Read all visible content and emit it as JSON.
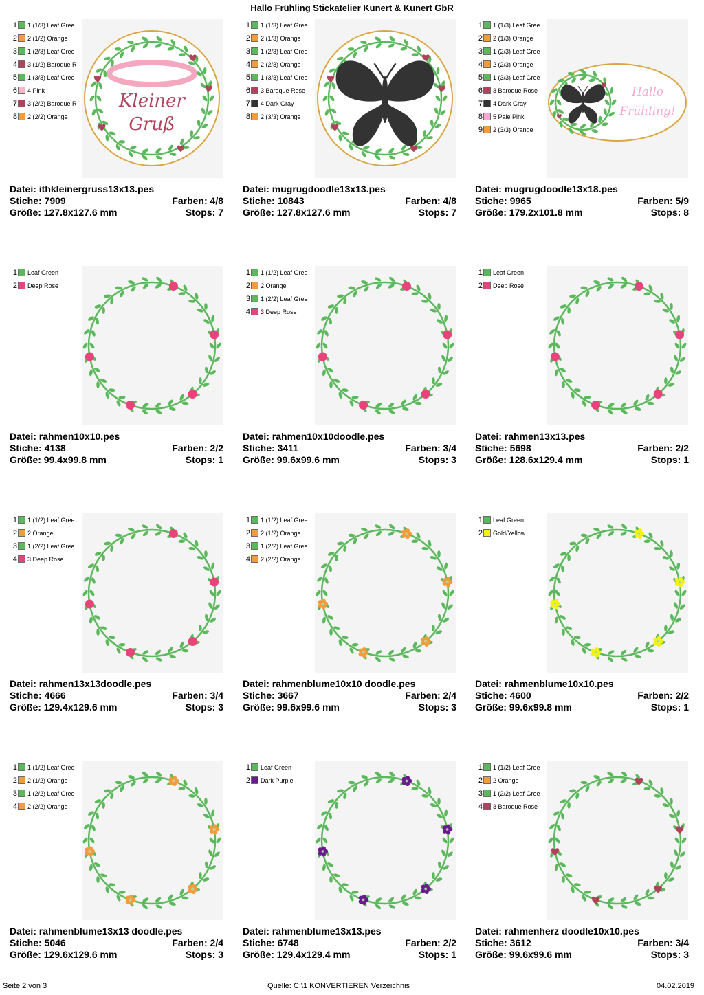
{
  "header": {
    "title": "Hallo Frühling Stickatelier Kunert & Kunert GbR"
  },
  "labels": {
    "file": "Datei:",
    "stitches": "Stiche:",
    "colors": "Farben:",
    "size": "Größe:",
    "stops": "Stops:"
  },
  "colors": {
    "leaf_green": "#5cb85c",
    "orange": "#f39c3c",
    "baroque_rose": "#b0435c",
    "pink": "#f5b7c6",
    "dark_gray": "#333333",
    "pale_pink": "#f7a8d0",
    "deep_rose": "#e8437a",
    "gold_yellow": "#f2f20c",
    "dark_purple": "#6a1b8a"
  },
  "designs": [
    {
      "file": "ithkleinergruss13x13.pes",
      "stitches": "7909",
      "colors": "4/8",
      "size": "127.8x127.6 mm",
      "stops": "7",
      "preview": {
        "type": "ring-text",
        "text1": "Kleiner",
        "text2": "Gruß"
      },
      "legend": [
        {
          "num": "1",
          "label": "1 (1/3) Leaf Gree",
          "color": "leaf_green"
        },
        {
          "num": "2",
          "label": "2 (1/2) Orange",
          "color": "orange"
        },
        {
          "num": "3",
          "label": "1 (2/3) Leaf Gree",
          "color": "leaf_green"
        },
        {
          "num": "4",
          "label": "3 (1/2) Baroque R",
          "color": "baroque_rose"
        },
        {
          "num": "5",
          "label": "1 (3/3) Leaf Gree",
          "color": "leaf_green"
        },
        {
          "num": "6",
          "label": "4 Pink",
          "color": "pink"
        },
        {
          "num": "7",
          "label": "3 (2/2) Baroque R",
          "color": "baroque_rose"
        },
        {
          "num": "8",
          "label": "2 (2/2) Orange",
          "color": "orange"
        }
      ]
    },
    {
      "file": "mugrugdoodle13x13.pes",
      "stitches": "10843",
      "colors": "4/8",
      "size": "127.8x127.6 mm",
      "stops": "7",
      "preview": {
        "type": "ring-butterfly"
      },
      "legend": [
        {
          "num": "1",
          "label": "1 (1/3) Leaf Gree",
          "color": "leaf_green"
        },
        {
          "num": "2",
          "label": "2 (1/3) Orange",
          "color": "orange"
        },
        {
          "num": "3",
          "label": "1 (2/3) Leaf Gree",
          "color": "leaf_green"
        },
        {
          "num": "4",
          "label": "2 (2/3) Orange",
          "color": "orange"
        },
        {
          "num": "5",
          "label": "1 (3/3) Leaf Gree",
          "color": "leaf_green"
        },
        {
          "num": "6",
          "label": "3 Baroque Rose",
          "color": "baroque_rose"
        },
        {
          "num": "7",
          "label": "4 Dark Gray",
          "color": "dark_gray"
        },
        {
          "num": "8",
          "label": "2 (3/3) Orange",
          "color": "orange"
        }
      ]
    },
    {
      "file": "mugrugdoodle13x18.pes",
      "stitches": "9965",
      "colors": "5/9",
      "size": "179.2x101.8 mm",
      "stops": "8",
      "preview": {
        "type": "oval",
        "text1": "Hallo",
        "text2": "Frühling!"
      },
      "legend": [
        {
          "num": "1",
          "label": "1 (1/3) Leaf Gree",
          "color": "leaf_green"
        },
        {
          "num": "2",
          "label": "2 (1/3) Orange",
          "color": "orange"
        },
        {
          "num": "3",
          "label": "1 (2/3) Leaf Gree",
          "color": "leaf_green"
        },
        {
          "num": "4",
          "label": "2 (2/3) Orange",
          "color": "orange"
        },
        {
          "num": "5",
          "label": "1 (3/3) Leaf Gree",
          "color": "leaf_green"
        },
        {
          "num": "6",
          "label": "3 Baroque Rose",
          "color": "baroque_rose"
        },
        {
          "num": "7",
          "label": "4 Dark Gray",
          "color": "dark_gray"
        },
        {
          "num": "8",
          "label": "5 Pale Pink",
          "color": "pale_pink"
        },
        {
          "num": "9",
          "label": "2 (3/3) Orange",
          "color": "orange"
        }
      ]
    },
    {
      "file": "rahmen10x10.pes",
      "stitches": "4138",
      "colors": "2/2",
      "size": "99.4x99.8 mm",
      "stops": "1",
      "preview": {
        "type": "ring",
        "accent": "deep_rose",
        "shape": "pompom"
      },
      "legend": [
        {
          "num": "1",
          "label": "Leaf Green",
          "color": "leaf_green"
        },
        {
          "num": "2",
          "label": "Deep Rose",
          "color": "deep_rose"
        }
      ]
    },
    {
      "file": "rahmen10x10doodle.pes",
      "stitches": "3411",
      "colors": "3/4",
      "size": "99.6x99.6 mm",
      "stops": "3",
      "preview": {
        "type": "ring",
        "accent": "deep_rose",
        "shape": "pompom"
      },
      "legend": [
        {
          "num": "1",
          "label": "1 (1/2) Leaf Gree",
          "color": "leaf_green"
        },
        {
          "num": "2",
          "label": "2 Orange",
          "color": "orange"
        },
        {
          "num": "3",
          "label": "1 (2/2) Leaf Gree",
          "color": "leaf_green"
        },
        {
          "num": "4",
          "label": "3 Deep Rose",
          "color": "deep_rose"
        }
      ]
    },
    {
      "file": "rahmen13x13.pes",
      "stitches": "5698",
      "colors": "2/2",
      "size": "128.6x129.4 mm",
      "stops": "1",
      "preview": {
        "type": "ring",
        "accent": "deep_rose",
        "shape": "pompom"
      },
      "legend": [
        {
          "num": "1",
          "label": "Leaf Green",
          "color": "leaf_green"
        },
        {
          "num": "2",
          "label": "Deep Rose",
          "color": "deep_rose"
        }
      ]
    },
    {
      "file": "rahmen13x13doodle.pes",
      "stitches": "4666",
      "colors": "3/4",
      "size": "129.4x129.6 mm",
      "stops": "3",
      "preview": {
        "type": "ring",
        "accent": "deep_rose",
        "shape": "pompom"
      },
      "legend": [
        {
          "num": "1",
          "label": "1 (1/2) Leaf Gree",
          "color": "leaf_green"
        },
        {
          "num": "2",
          "label": "2 Orange",
          "color": "orange"
        },
        {
          "num": "3",
          "label": "1 (2/2) Leaf Gree",
          "color": "leaf_green"
        },
        {
          "num": "4",
          "label": "3 Deep Rose",
          "color": "deep_rose"
        }
      ]
    },
    {
      "file": "rahmenblume10x10 doodle.pes",
      "stitches": "3667",
      "colors": "2/4",
      "size": "99.6x99.6 mm",
      "stops": "3",
      "preview": {
        "type": "ring",
        "accent": "orange",
        "shape": "flower"
      },
      "legend": [
        {
          "num": "1",
          "label": "1 (1/2) Leaf Gree",
          "color": "leaf_green"
        },
        {
          "num": "2",
          "label": "2 (1/2) Orange",
          "color": "orange"
        },
        {
          "num": "3",
          "label": "1 (2/2) Leaf Gree",
          "color": "leaf_green"
        },
        {
          "num": "4",
          "label": "2 (2/2) Orange",
          "color": "orange"
        }
      ]
    },
    {
      "file": "rahmenblume10x10.pes",
      "stitches": "4600",
      "colors": "2/2",
      "size": "99.6x99.8 mm",
      "stops": "1",
      "preview": {
        "type": "ring",
        "accent": "gold_yellow",
        "shape": "flower"
      },
      "legend": [
        {
          "num": "1",
          "label": "Leaf Green",
          "color": "leaf_green"
        },
        {
          "num": "2",
          "label": "Gold/Yellow",
          "color": "gold_yellow"
        }
      ]
    },
    {
      "file": "rahmenblume13x13 doodle.pes",
      "stitches": "5046",
      "colors": "2/4",
      "size": "129.6x129.6 mm",
      "stops": "3",
      "preview": {
        "type": "ring",
        "accent": "orange",
        "shape": "flower"
      },
      "legend": [
        {
          "num": "1",
          "label": "1 (1/2) Leaf Gree",
          "color": "leaf_green"
        },
        {
          "num": "2",
          "label": "2 (1/2) Orange",
          "color": "orange"
        },
        {
          "num": "3",
          "label": "1 (2/2) Leaf Gree",
          "color": "leaf_green"
        },
        {
          "num": "4",
          "label": "2 (2/2) Orange",
          "color": "orange"
        }
      ]
    },
    {
      "file": "rahmenblume13x13.pes",
      "stitches": "6748",
      "colors": "2/2",
      "size": "129.4x129.4 mm",
      "stops": "1",
      "preview": {
        "type": "ring",
        "accent": "dark_purple",
        "shape": "flower"
      },
      "legend": [
        {
          "num": "1",
          "label": "Leaf Green",
          "color": "leaf_green"
        },
        {
          "num": "2",
          "label": "Dark Purple",
          "color": "dark_purple"
        }
      ]
    },
    {
      "file": "rahmenherz doodle10x10.pes",
      "stitches": "3612",
      "colors": "3/4",
      "size": "99.6x99.6 mm",
      "stops": "3",
      "preview": {
        "type": "ring",
        "accent": "baroque_rose",
        "shape": "heart"
      },
      "legend": [
        {
          "num": "1",
          "label": "1 (1/2) Leaf Gree",
          "color": "leaf_green"
        },
        {
          "num": "2",
          "label": "2 Orange",
          "color": "orange"
        },
        {
          "num": "3",
          "label": "1 (2/2) Leaf Gree",
          "color": "leaf_green"
        },
        {
          "num": "4",
          "label": "3 Baroque Rose",
          "color": "baroque_rose"
        }
      ]
    }
  ],
  "footer": {
    "page": "Seite 2 von 3",
    "source": "Quelle: C:\\1 KONVERTIEREN Verzeichnis",
    "date": "04.02.2019"
  }
}
